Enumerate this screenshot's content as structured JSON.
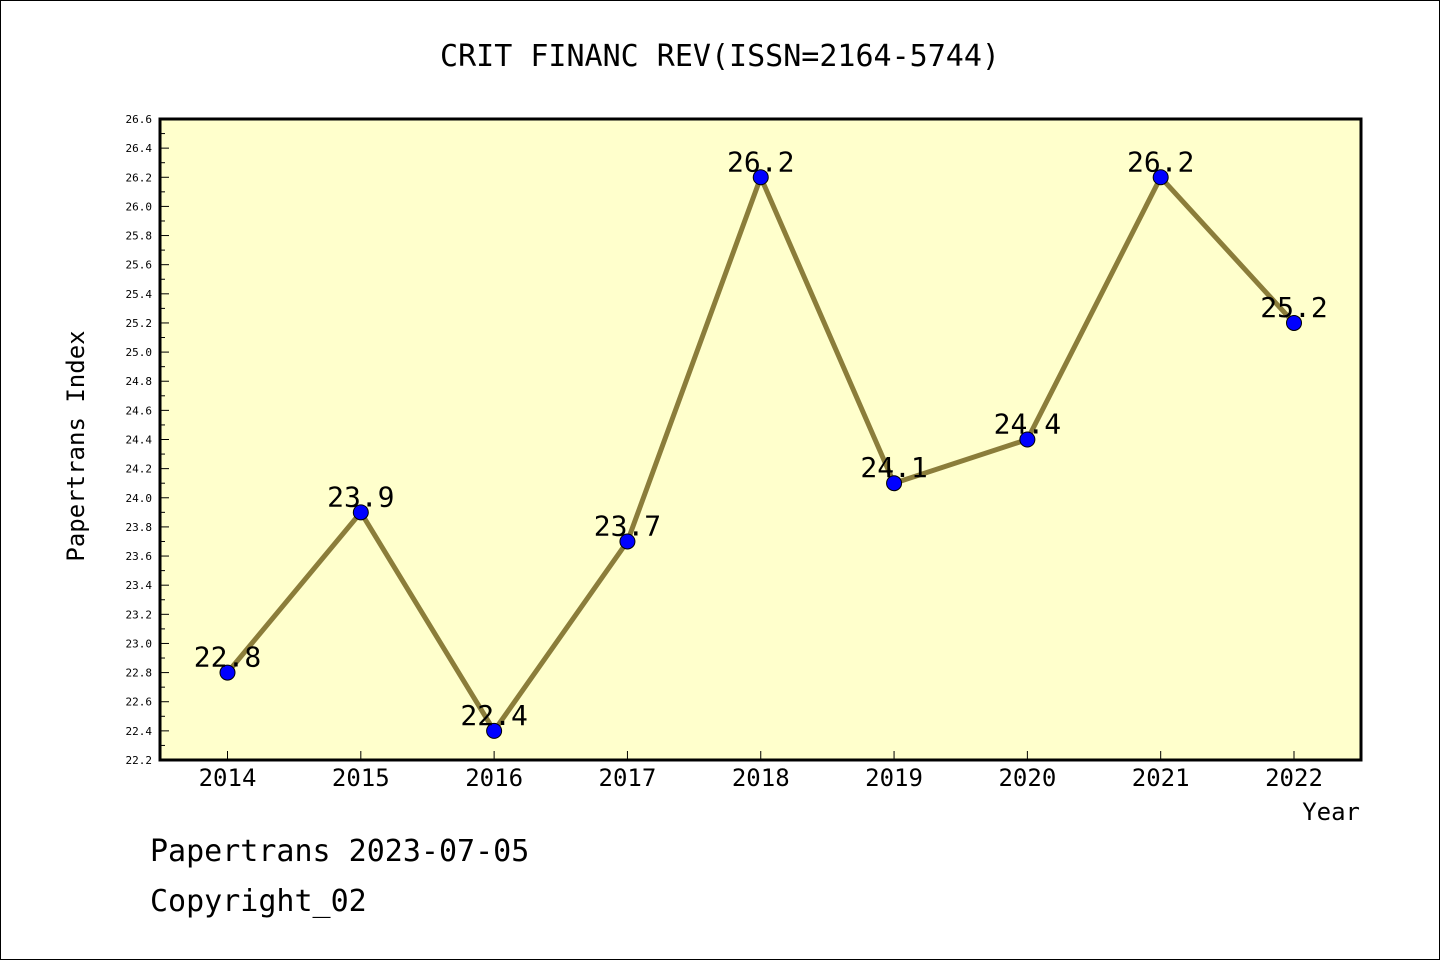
{
  "title": "CRIT FINANC REV(ISSN=2164-5744)",
  "footer": {
    "line1": "Papertrans 2023-07-05",
    "line2": "Copyright_02"
  },
  "colors": {
    "plot_background": "#ffffcc",
    "line": "#8b7d3a",
    "marker": "#0000ff",
    "border": "#000000"
  },
  "chart_data": {
    "type": "line",
    "title": "CRIT FINANC REV(ISSN=2164-5744)",
    "xlabel": "Year",
    "ylabel": "Papertrans Index",
    "x": [
      "2014",
      "2015",
      "2016",
      "2017",
      "2018",
      "2019",
      "2020",
      "2021",
      "2022"
    ],
    "series": [
      {
        "values": [
          22.8,
          23.9,
          22.4,
          23.7,
          26.2,
          24.1,
          24.4,
          26.2,
          25.2
        ],
        "data_labels": [
          "22.8",
          "23.9",
          "22.4",
          "23.7",
          "26.2",
          "24.1",
          "24.4",
          "26.2",
          "25.2"
        ]
      }
    ],
    "ylim": [
      22.2,
      26.6
    ],
    "y_ticks": [
      "22.2",
      "22.4",
      "22.6",
      "22.8",
      "23.0",
      "23.2",
      "23.4",
      "23.6",
      "23.8",
      "24.0",
      "24.2",
      "24.4",
      "24.6",
      "24.8",
      "25.0",
      "25.2",
      "25.4",
      "25.6",
      "25.8",
      "26.0",
      "26.2",
      "26.4",
      "26.6"
    ],
    "grid": false,
    "legend": "none"
  }
}
